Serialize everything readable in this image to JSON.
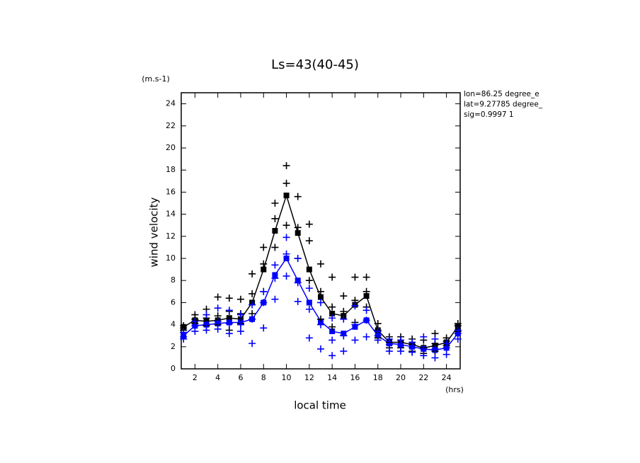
{
  "chart_data": {
    "type": "line",
    "title": "Ls=43(40-45)",
    "y_unit": "(m.s-1)",
    "ylabel": "wind velocity",
    "x_unit": "(hrs)",
    "xlabel": "local time",
    "annotations": [
      "lon=86.25 degree_e",
      "lat=9.27785 degree_",
      "sig=0.9997 1"
    ],
    "x": [
      1,
      2,
      3,
      4,
      5,
      6,
      7,
      8,
      9,
      10,
      11,
      12,
      13,
      14,
      15,
      16,
      17,
      18,
      19,
      20,
      21,
      22,
      23,
      24,
      25
    ],
    "xlim": [
      0.8,
      25.2
    ],
    "xticks": [
      2,
      4,
      6,
      8,
      10,
      12,
      14,
      16,
      18,
      20,
      22,
      24
    ],
    "ylim": [
      0,
      25
    ],
    "yticks": [
      0,
      2,
      4,
      6,
      8,
      10,
      12,
      14,
      16,
      18,
      20,
      22,
      24
    ],
    "series": [
      {
        "color": "#000000",
        "kind": "line",
        "values": [
          3.8,
          4.4,
          4.3,
          4.4,
          4.6,
          4.5,
          6.0,
          9.0,
          12.5,
          15.7,
          12.3,
          9.0,
          6.5,
          5.0,
          4.8,
          5.8,
          6.6,
          3.5,
          2.4,
          2.4,
          2.2,
          1.9,
          2.1,
          2.4,
          3.8
        ]
      },
      {
        "color": "#0000ff",
        "kind": "line",
        "values": [
          3.0,
          3.9,
          4.0,
          4.1,
          4.2,
          4.2,
          4.5,
          6.0,
          8.5,
          10.0,
          8.0,
          6.0,
          4.3,
          3.4,
          3.2,
          3.8,
          4.4,
          3.0,
          2.3,
          2.2,
          2.0,
          1.8,
          1.7,
          1.9,
          3.2
        ]
      },
      {
        "color": "#000000",
        "kind": "scatter",
        "values": [
          [
            3.9,
            3.5,
            3.7
          ],
          [
            4.9,
            4.5,
            4.1
          ],
          [
            5.4,
            4.6,
            3.9
          ],
          [
            6.5,
            4.8,
            4.0
          ],
          [
            6.4,
            5.2,
            3.5
          ],
          [
            6.3,
            5.0,
            4.1
          ],
          [
            8.6,
            6.8,
            5.0
          ],
          [
            11.0,
            9.5,
            7.0
          ],
          [
            15.0,
            13.6,
            11.0
          ],
          [
            18.4,
            16.8,
            13.0
          ],
          [
            15.6,
            12.8,
            10.0
          ],
          [
            13.1,
            11.6,
            8.0
          ],
          [
            9.5,
            7.0,
            4.5
          ],
          [
            8.3,
            5.6,
            3.8
          ],
          [
            6.6,
            5.2,
            3.0
          ],
          [
            8.3,
            6.2,
            4.2
          ],
          [
            8.3,
            7.0,
            5.6
          ],
          [
            4.1,
            3.5,
            2.8
          ],
          [
            2.9,
            2.4,
            1.9
          ],
          [
            2.9,
            2.4,
            1.9
          ],
          [
            2.7,
            2.2,
            1.6
          ],
          [
            2.6,
            1.9,
            1.4
          ],
          [
            3.2,
            2.3,
            1.6
          ],
          [
            2.8,
            2.5,
            2.1
          ],
          [
            4.1,
            3.9,
            3.4
          ]
        ]
      },
      {
        "color": "#0000ff",
        "kind": "scatter",
        "values": [
          [
            3.3,
            2.9,
            2.7
          ],
          [
            4.3,
            3.9,
            3.4
          ],
          [
            4.9,
            4.0,
            3.5
          ],
          [
            5.5,
            4.3,
            3.6
          ],
          [
            5.3,
            4.1,
            3.2
          ],
          [
            4.9,
            4.0,
            3.4
          ],
          [
            5.8,
            4.5,
            2.3
          ],
          [
            7.0,
            6.0,
            3.7
          ],
          [
            9.4,
            8.2,
            6.3
          ],
          [
            11.9,
            10.4,
            8.4
          ],
          [
            10.0,
            7.8,
            6.1
          ],
          [
            7.3,
            5.4,
            2.8
          ],
          [
            6.0,
            4.0,
            1.8
          ],
          [
            4.6,
            2.6,
            1.2
          ],
          [
            4.5,
            3.0,
            1.6
          ],
          [
            5.7,
            4.0,
            2.6
          ],
          [
            5.3,
            4.4,
            2.9
          ],
          [
            3.4,
            3.0,
            2.6
          ],
          [
            2.7,
            2.2,
            1.6
          ],
          [
            2.6,
            2.1,
            1.6
          ],
          [
            2.4,
            1.9,
            1.5
          ],
          [
            2.9,
            1.8,
            1.2
          ],
          [
            2.7,
            1.8,
            1.0
          ],
          [
            2.3,
            1.9,
            1.3
          ],
          [
            3.5,
            3.2,
            2.7
          ]
        ]
      }
    ]
  }
}
